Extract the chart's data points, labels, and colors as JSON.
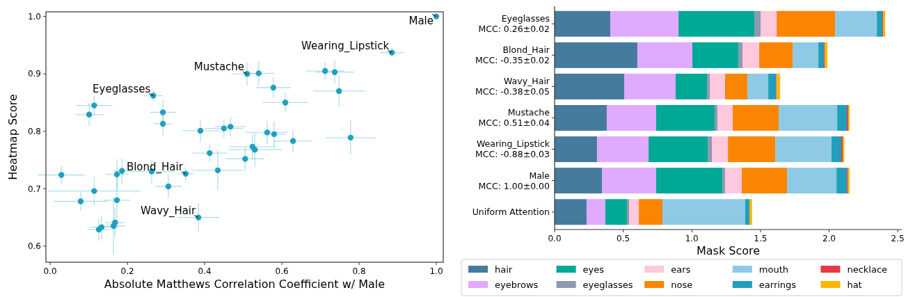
{
  "chart_data": [
    {
      "type": "scatter",
      "xlabel": "Absolute Matthews Correlation Coefficient w/ Male",
      "ylabel": "Heatmap Score",
      "color": "#20a0c0",
      "marker": "circle",
      "xlim": [
        -0.011,
        1.018
      ],
      "ylim": [
        0.572,
        1.008
      ],
      "xticks": [
        {
          "value": 0,
          "label": "0.0"
        },
        0.2,
        0.4,
        0.6,
        0.8,
        {
          "value": 1,
          "label": "1.0"
        }
      ],
      "yticks": [
        0.6,
        0.7,
        0.8,
        0.9,
        {
          "value": 1,
          "label": "1.0"
        }
      ],
      "x": [
        1.0,
        0.885,
        0.51,
        0.54,
        0.578,
        0.609,
        0.712,
        0.737,
        0.748,
        0.778,
        0.267,
        0.114,
        0.101,
        0.292,
        0.292,
        0.389,
        0.45,
        0.467,
        0.413,
        0.434,
        0.505,
        0.524,
        0.53,
        0.562,
        0.58,
        0.629,
        0.029,
        0.173,
        0.186,
        0.263,
        0.351,
        0.306,
        0.114,
        0.079,
        0.173,
        0.168,
        0.164,
        0.133,
        0.126,
        0.384
      ],
      "values": [
        1.0,
        0.937,
        0.9,
        0.901,
        0.876,
        0.85,
        0.905,
        0.903,
        0.87,
        0.789,
        0.862,
        0.845,
        0.829,
        0.833,
        0.813,
        0.801,
        0.805,
        0.808,
        0.762,
        0.732,
        0.752,
        0.773,
        0.768,
        0.798,
        0.795,
        0.783,
        0.724,
        0.725,
        0.731,
        0.73,
        0.726,
        0.704,
        0.696,
        0.678,
        0.68,
        0.641,
        0.635,
        0.633,
        0.629,
        0.65
      ],
      "xerrors": [
        null,
        0.03,
        0.04,
        0.04,
        0.045,
        0.058,
        0.05,
        0.05,
        0.067,
        0.064,
        0.024,
        0.048,
        0.036,
        0.034,
        0.024,
        0.047,
        0.05,
        0.04,
        0.045,
        0.066,
        0.05,
        0.06,
        0.07,
        0.055,
        0.03,
        0.05,
        0.06,
        0.03,
        0.02,
        0.06,
        0.02,
        0.034,
        0.12,
        0.07,
        0.034,
        0.025,
        0.03,
        0.03,
        0.03,
        0.055
      ],
      "errors": [
        null,
        0.008,
        0.02,
        0.022,
        0.018,
        0.016,
        0.015,
        0.02,
        0.027,
        0.03,
        0.01,
        0.017,
        0.02,
        0.022,
        0.02,
        0.02,
        0.016,
        0.017,
        0.015,
        0.035,
        0.02,
        0.022,
        0.03,
        0.02,
        0.022,
        0.02,
        0.015,
        0.027,
        0.022,
        0.02,
        0.012,
        0.02,
        0.025,
        0.016,
        0.05,
        0.025,
        0.05,
        0.02,
        0.02,
        0.025
      ],
      "annotations": [
        {
          "text": "Male",
          "x": 1.0,
          "y": 1.0
        },
        {
          "text": "Wearing_Lipstick",
          "x": 0.885,
          "y": 0.937
        },
        {
          "text": "Mustache",
          "x": 0.51,
          "y": 0.9
        },
        {
          "text": "Eyeglasses",
          "x": 0.267,
          "y": 0.862
        },
        {
          "text": "Blond_Hair",
          "x": 0.351,
          "y": 0.726
        },
        {
          "text": "Wavy_Hair",
          "x": 0.384,
          "y": 0.65
        }
      ]
    },
    {
      "type": "bar",
      "orientation": "horizontal",
      "stacked": true,
      "xlabel": "Mask Score",
      "legend": "bottom",
      "xlim": [
        0,
        2.53
      ],
      "xticks": [
        {
          "value": 0,
          "label": "0.0"
        },
        0.5,
        {
          "value": 1,
          "label": "1.0"
        },
        1.5,
        {
          "value": 2,
          "label": "2.0"
        },
        2.5
      ],
      "categories": [
        "Eyeglasses\nMCC: 0.26±0.02",
        "Blond_Hair\nMCC: -0.35±0.02",
        "Wavy_Hair\nMCC: -0.38±0.05",
        "Mustache\nMCC: 0.51±0.04",
        "Wearing_Lipstick\nMCC: -0.88±0.03",
        "Male\nMCC: 1.00±0.00",
        "Uniform Attention"
      ],
      "series": [
        {
          "name": "hair",
          "color": "#457b9d",
          "values": [
            0.406,
            0.603,
            0.507,
            0.38,
            0.309,
            0.345,
            0.233
          ]
        },
        {
          "name": "eyebrows",
          "color": "#e0aaff",
          "values": [
            0.497,
            0.401,
            0.375,
            0.36,
            0.376,
            0.395,
            0.137
          ]
        },
        {
          "name": "eyes",
          "color": "#00a896",
          "values": [
            0.552,
            0.335,
            0.229,
            0.426,
            0.431,
            0.482,
            0.157
          ]
        },
        {
          "name": "eyeglasses",
          "color": "#8d99ae",
          "values": [
            0.046,
            0.03,
            0.02,
            0.021,
            0.03,
            0.02,
            0.016
          ]
        },
        {
          "name": "ears",
          "color": "#ffc8dd",
          "values": [
            0.117,
            0.122,
            0.111,
            0.111,
            0.117,
            0.122,
            0.071
          ]
        },
        {
          "name": "nose",
          "color": "#fb8500",
          "values": [
            0.426,
            0.243,
            0.163,
            0.335,
            0.345,
            0.33,
            0.172
          ]
        },
        {
          "name": "mouth",
          "color": "#8ecae6",
          "values": [
            0.304,
            0.188,
            0.152,
            0.426,
            0.41,
            0.36,
            0.603
          ]
        },
        {
          "name": "earrings",
          "color": "#219ebc",
          "values": [
            0.04,
            0.04,
            0.057,
            0.071,
            0.071,
            0.076,
            0.031
          ]
        },
        {
          "name": "necklace",
          "color": "#e63946",
          "values": [
            0.006,
            0.006,
            0.004,
            0.01,
            0.01,
            0.008,
            null
          ]
        },
        {
          "name": "hat",
          "color": "#ffb703",
          "values": [
            0.015,
            0.02,
            0.025,
            0.01,
            0.012,
            0.012,
            0.019
          ]
        }
      ]
    }
  ]
}
